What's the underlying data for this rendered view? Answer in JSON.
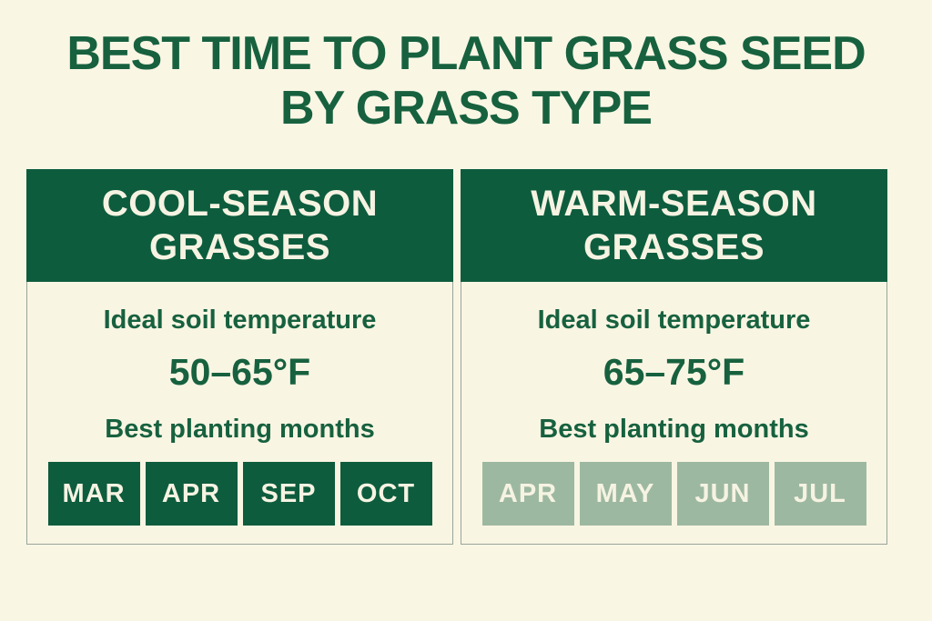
{
  "header": {
    "title_line1": "BEST TIME TO PLANT GRASS SEED",
    "title_line2": "BY GRASS TYPE"
  },
  "colors": {
    "background": "#faf6e4",
    "card_bg": "#f9f5e3",
    "dark_green": "#0d5c3e",
    "text_green": "#17613f",
    "sage_green": "#9db8a1",
    "cream_text": "#f6f3e2",
    "card_border": "#97a59b"
  },
  "cards": [
    {
      "title_line1": "COOL-SEASON",
      "title_line2": "GRASSES",
      "soil_temp_label": "Ideal soil temperature",
      "soil_temp_value": "50–65°F",
      "months_label": "Best planting months",
      "months": [
        "MAR",
        "APR",
        "SEP",
        "OCT"
      ]
    },
    {
      "title_line1": "WARM-SEASON",
      "title_line2": "GRASSES",
      "soil_temp_label": "Ideal soil temperature",
      "soil_temp_value": "65–75°F",
      "months_label": "Best planting months",
      "months": [
        "APR",
        "MAY",
        "JUN",
        "JUL"
      ]
    }
  ]
}
